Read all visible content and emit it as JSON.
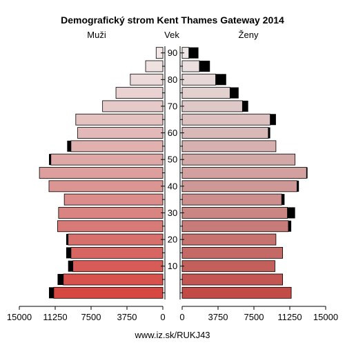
{
  "chart_data": {
    "type": "bar",
    "title": "Demografický strom Kent Thames Gateway 2014",
    "left_label": "Muži",
    "center_label": "Vek",
    "right_label": "Ženy",
    "footer": "www.iz.sk/RUKJ43",
    "age_group_start": [
      0,
      5,
      10,
      15,
      20,
      25,
      30,
      35,
      40,
      45,
      50,
      55,
      60,
      65,
      70,
      75,
      80,
      85,
      90
    ],
    "age_ticks": [
      10,
      20,
      30,
      40,
      50,
      60,
      70,
      80,
      90
    ],
    "x_ticks_left": [
      "15000",
      "11250",
      "7500",
      "3750",
      "0"
    ],
    "x_ticks_right": [
      "0",
      "3750",
      "7500",
      "11250",
      "15000"
    ],
    "xlim": [
      0,
      15000
    ],
    "series": [
      {
        "name": "Muži",
        "values": [
          11400,
          10400,
          9400,
          9600,
          9900,
          11000,
          10900,
          10300,
          11900,
          12900,
          11700,
          9600,
          8900,
          9100,
          6300,
          4900,
          3400,
          1800,
          700
        ],
        "surplus": [
          500,
          600,
          500,
          500,
          200,
          0,
          0,
          0,
          0,
          0,
          200,
          400,
          0,
          0,
          0,
          0,
          0,
          0,
          0
        ]
      },
      {
        "name": "Ženy",
        "values": [
          11400,
          10500,
          9700,
          10500,
          9800,
          11100,
          11000,
          10400,
          12000,
          13000,
          11800,
          9800,
          9000,
          9200,
          6300,
          5000,
          3500,
          1800,
          700
        ],
        "surplus": [
          0,
          0,
          0,
          0,
          0,
          300,
          800,
          300,
          200,
          100,
          0,
          0,
          200,
          600,
          600,
          900,
          1100,
          1100,
          1000
        ]
      }
    ]
  }
}
